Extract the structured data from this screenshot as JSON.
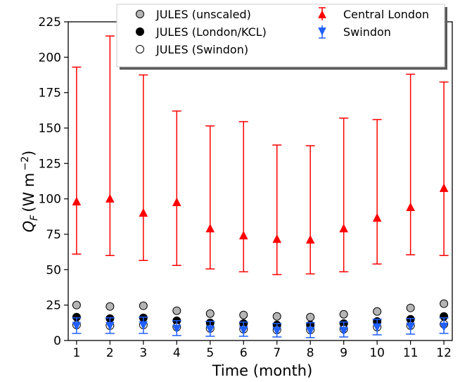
{
  "chart_data": {
    "type": "scatter",
    "xlabel": "Time (month)",
    "ylabel_symbol": "Q",
    "ylabel_subscript": "F",
    "ylabel_units": "(W m",
    "ylabel_exponent": "−2",
    "ylabel_close": ")",
    "xlim": [
      0.75,
      12.25
    ],
    "ylim": [
      0,
      225
    ],
    "xticks": [
      1,
      2,
      3,
      4,
      5,
      6,
      7,
      8,
      9,
      10,
      11,
      12
    ],
    "yticks": [
      0,
      25,
      50,
      75,
      100,
      125,
      150,
      175,
      200,
      225
    ],
    "grid": false,
    "legend_position": "top-center",
    "series": [
      {
        "name": "JULES (unscaled)",
        "kind": "points",
        "marker": "circle",
        "fill": "#b5b5b5",
        "x": [
          1,
          2,
          3,
          4,
          5,
          6,
          7,
          8,
          9,
          10,
          11,
          12
        ],
        "values": [
          25,
          24,
          24.5,
          21,
          19,
          18,
          17,
          16.5,
          18.5,
          20.5,
          23,
          26
        ]
      },
      {
        "name": "JULES (London/KCL)",
        "kind": "points",
        "marker": "circle",
        "fill": "#000000",
        "x": [
          1,
          2,
          3,
          4,
          5,
          6,
          7,
          8,
          9,
          10,
          11,
          12
        ],
        "values": [
          16.5,
          15.5,
          16,
          14,
          12.5,
          12,
          11,
          11,
          12,
          13.5,
          15,
          17
        ]
      },
      {
        "name": "JULES (Swindon)",
        "kind": "points",
        "marker": "circle",
        "fill": "#ffffff",
        "x": [
          1,
          2,
          3,
          4,
          5,
          6,
          7,
          8,
          9,
          10,
          11,
          12
        ],
        "values": [
          11,
          10.5,
          11,
          9.5,
          8.5,
          8,
          7.5,
          7.5,
          8,
          9.5,
          10.5,
          11.5
        ]
      },
      {
        "name": "Central London",
        "kind": "errorbar",
        "marker": "triangle-up",
        "color": "#ff0000",
        "x": [
          1,
          2,
          3,
          4,
          5,
          6,
          7,
          8,
          9,
          10,
          11,
          12
        ],
        "values": [
          98,
          100,
          90,
          97.5,
          79,
          74,
          71.5,
          71,
          79,
          86.5,
          94,
          107.5
        ],
        "low": [
          61,
          60,
          56.5,
          53,
          50.5,
          48.5,
          46.5,
          47,
          48.5,
          54,
          60.5,
          60
        ],
        "high": [
          193,
          215,
          187.5,
          162,
          151.5,
          154.5,
          138,
          137.5,
          157,
          156,
          188,
          182.5
        ]
      },
      {
        "name": "Swindon",
        "kind": "errorbar",
        "marker": "triangle-down",
        "color": "#1f5fff",
        "x": [
          1,
          2,
          3,
          4,
          5,
          6,
          7,
          8,
          9,
          10,
          11,
          12
        ],
        "values": [
          10.5,
          10.5,
          11,
          8.5,
          8,
          7.5,
          7,
          7,
          7,
          9.5,
          10,
          10
        ],
        "low": [
          5,
          5,
          5,
          3.5,
          3,
          3,
          2.5,
          2,
          2.5,
          4,
          4.5,
          5
        ],
        "high": [
          16,
          16,
          16.5,
          14,
          13.5,
          13,
          12,
          12.5,
          13,
          15,
          15.5,
          16
        ]
      }
    ]
  }
}
